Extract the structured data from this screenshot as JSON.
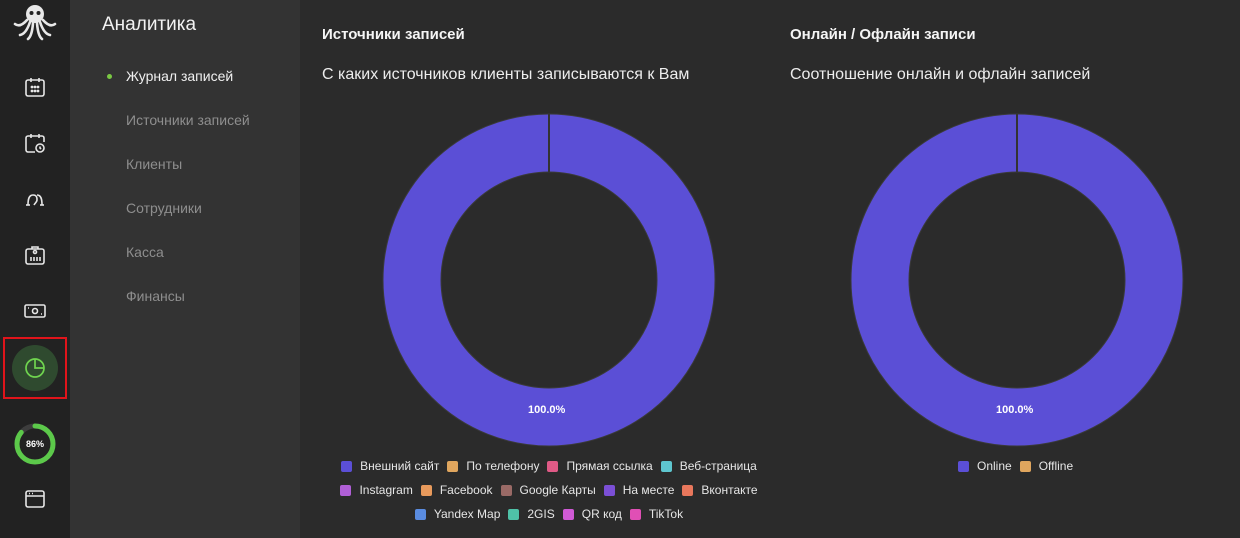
{
  "rail": {
    "logo": "octopus-logo",
    "items": [
      {
        "name": "calendar-icon"
      },
      {
        "name": "calendar-clock-icon"
      },
      {
        "name": "clients-icon"
      },
      {
        "name": "staff-badge-icon"
      },
      {
        "name": "cash-icon"
      },
      {
        "name": "analytics-pie-icon",
        "active": true
      },
      {
        "name": "window-icon"
      }
    ],
    "progress": {
      "value": 0.86,
      "label": "86%",
      "color": "#5cc94a"
    }
  },
  "subnav": {
    "title": "Аналитика",
    "items": [
      {
        "label": "Журнал записей",
        "active": true
      },
      {
        "label": "Источники записей"
      },
      {
        "label": "Клиенты"
      },
      {
        "label": "Сотрудники"
      },
      {
        "label": "Касса"
      },
      {
        "label": "Финансы"
      }
    ]
  },
  "panels": {
    "sources": {
      "title": "Источники записей",
      "subtitle": "С каких источников клиенты записываются к Вам",
      "slice_label": "100.0%",
      "legend_rows": [
        [
          {
            "label": "Внешний сайт",
            "color": "#5b4fd6"
          },
          {
            "label": "По телефону",
            "color": "#e0a65e"
          },
          {
            "label": "Прямая ссылка",
            "color": "#e05a86"
          },
          {
            "label": "Веб-страница",
            "color": "#5ec6cf"
          }
        ],
        [
          {
            "label": "Instagram",
            "color": "#b05fd6"
          },
          {
            "label": "Facebook",
            "color": "#e89a5c"
          },
          {
            "label": "Google Карты",
            "color": "#9a6a66"
          },
          {
            "label": "На месте",
            "color": "#7b4fd6"
          },
          {
            "label": "Вконтакте",
            "color": "#e8775c"
          }
        ],
        [
          {
            "label": "Yandex Map",
            "color": "#5a8ce0"
          },
          {
            "label": "2GIS",
            "color": "#4fc2a8"
          },
          {
            "label": "QR код",
            "color": "#d05ad6"
          },
          {
            "label": "TikTok",
            "color": "#e04fb5"
          }
        ]
      ]
    },
    "online": {
      "title": "Онлайн / Офлайн записи",
      "subtitle": "Соотношение онлайн и офлайн записей",
      "slice_label": "100.0%",
      "legend": [
        {
          "label": "Online",
          "color": "#5b4fd6"
        },
        {
          "label": "Offline",
          "color": "#e0a65e"
        }
      ]
    }
  },
  "colors": {
    "donut": "#5b4fd6",
    "donut_stroke": "#333333",
    "highlight": "#e0141b"
  }
}
